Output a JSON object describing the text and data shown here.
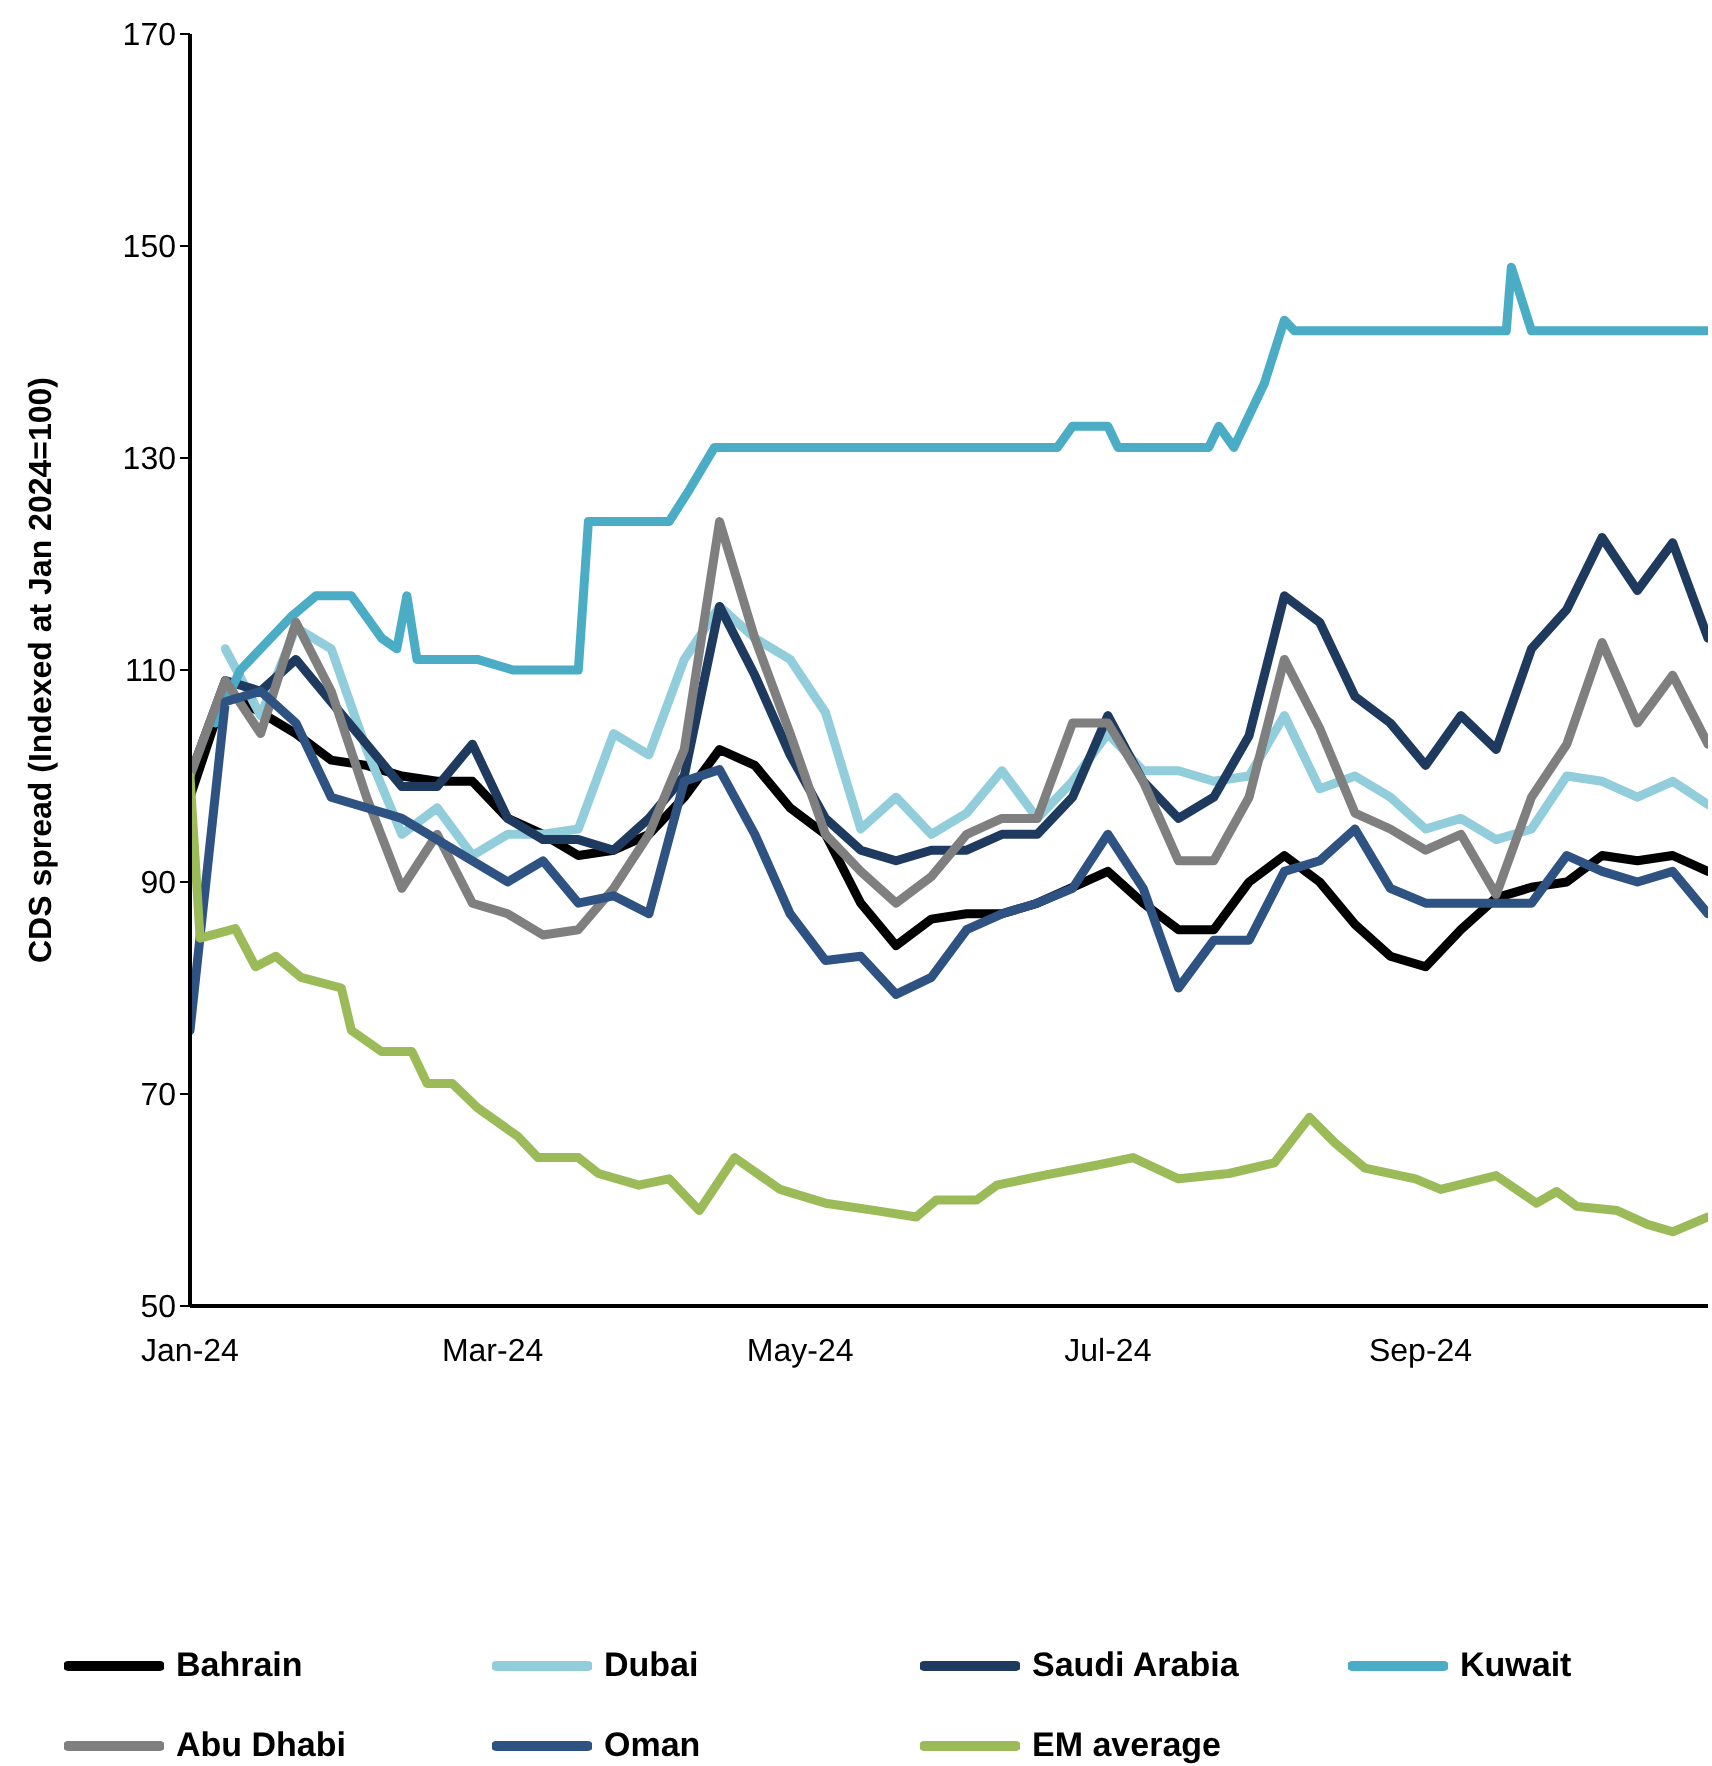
{
  "chart_data": {
    "type": "line",
    "ylabel": "CDS spread (Indexed at Jan 2024=100)",
    "x": [
      "2024-01-01",
      "2024-01-08",
      "2024-01-15",
      "2024-01-22",
      "2024-01-29",
      "2024-02-05",
      "2024-02-12",
      "2024-02-19",
      "2024-02-26",
      "2024-03-04",
      "2024-03-11",
      "2024-03-18",
      "2024-03-25",
      "2024-04-01",
      "2024-04-08",
      "2024-04-15",
      "2024-04-22",
      "2024-04-29",
      "2024-05-06",
      "2024-05-13",
      "2024-05-20",
      "2024-05-27",
      "2024-06-03",
      "2024-06-10",
      "2024-06-17",
      "2024-06-24",
      "2024-07-01",
      "2024-07-08",
      "2024-07-15",
      "2024-07-22",
      "2024-07-29",
      "2024-08-05",
      "2024-08-12",
      "2024-08-19",
      "2024-08-26",
      "2024-09-02",
      "2024-09-09",
      "2024-09-16",
      "2024-09-23",
      "2024-09-30",
      "2024-10-07",
      "2024-10-14",
      "2024-10-21",
      "2024-10-28"
    ],
    "series": [
      {
        "name": "Bahrain",
        "color": "#000000",
        "values": [
          98,
          108,
          106,
          104,
          101.5,
          101,
          100,
          99.5,
          99.5,
          96,
          94.5,
          92.5,
          93,
          94.5,
          98,
          102.5,
          101,
          97,
          94.5,
          88,
          84,
          86.5,
          87,
          87,
          88,
          89.5,
          91,
          88,
          85.5,
          85.5,
          90,
          92.5,
          90,
          86,
          83,
          82,
          85.5,
          88.5,
          89.5,
          90,
          92.5,
          92,
          92.5,
          91
        ]
      },
      {
        "name": "Dubai",
        "color": "#92cddc",
        "values": [
          null,
          112,
          105.7,
          114,
          112,
          102.5,
          94.5,
          97,
          92.5,
          94.5,
          94.5,
          95,
          104,
          102,
          111,
          116,
          113,
          111,
          106,
          95,
          98,
          94.5,
          96.5,
          100.5,
          96,
          99.5,
          104,
          100.5,
          100.5,
          99.5,
          100,
          105.7,
          98.8,
          100,
          98,
          95,
          96,
          94,
          95,
          100,
          99.5,
          98,
          99.5,
          97.3
        ]
      },
      {
        "name": "Saudi Arabia",
        "color": "#1f3a5f",
        "values": [
          100,
          109,
          108,
          111,
          107,
          103,
          99,
          99,
          103,
          96,
          94,
          94,
          93,
          96,
          100,
          116,
          109.5,
          102,
          96,
          93,
          92,
          93,
          93,
          94.5,
          94.5,
          98,
          105.7,
          99.5,
          96,
          98,
          103.8,
          117,
          114.5,
          107.5,
          105,
          101,
          105.7,
          102.5,
          112,
          115.7,
          122.5,
          117.5,
          122,
          113
        ]
      },
      {
        "name": "Kuwait",
        "color": "#4bacc6",
        "x": [
          "2024-01-06",
          "2024-01-11",
          "2024-01-21",
          "2024-01-26",
          "2024-02-02",
          "2024-02-08",
          "2024-02-11",
          "2024-02-13",
          "2024-02-15",
          "2024-02-27",
          "2024-03-05",
          "2024-03-18",
          "2024-03-20",
          "2024-04-05",
          "2024-04-09",
          "2024-04-14",
          "2024-06-21",
          "2024-06-24",
          "2024-07-01",
          "2024-07-03",
          "2024-07-21",
          "2024-07-23",
          "2024-07-26",
          "2024-08-01",
          "2024-08-05",
          "2024-08-07",
          "2024-09-18",
          "2024-09-19",
          "2024-09-23",
          "2024-10-28"
        ],
        "values": [
          105,
          110,
          115,
          117,
          117,
          113,
          112,
          117,
          111,
          111,
          110,
          110,
          124,
          124,
          127,
          131,
          131,
          133,
          133,
          131,
          131,
          133,
          131,
          137,
          143,
          142,
          142,
          148,
          142,
          142
        ]
      },
      {
        "name": "Abu Dhabi",
        "color": "#7f7f7f",
        "values": [
          100,
          109,
          104,
          114.5,
          108,
          98,
          89.4,
          94.5,
          88,
          87,
          85,
          85.5,
          89.4,
          94.5,
          102.5,
          124,
          113,
          104,
          94.5,
          91,
          88,
          90.5,
          94.5,
          96,
          96,
          105,
          105,
          99.5,
          92,
          92,
          98,
          111,
          104.5,
          96.5,
          95,
          93,
          94.5,
          88.8,
          98,
          103,
          112.6,
          105,
          109.5,
          103
        ]
      },
      {
        "name": "Oman",
        "color": "#2e5282",
        "values": [
          76,
          107,
          108,
          105,
          98,
          97,
          96,
          94,
          92,
          90,
          92,
          88,
          88.7,
          87,
          99.5,
          100.6,
          94.5,
          87,
          82.6,
          83,
          79.4,
          81,
          85.5,
          87,
          88,
          89.4,
          94.5,
          89.4,
          80,
          84.5,
          84.5,
          91,
          92,
          95,
          89.4,
          88,
          88,
          88,
          88,
          92.5,
          91,
          90,
          91,
          87
        ]
      },
      {
        "name": "EM average",
        "color": "#9bbb59",
        "x": [
          "2024-01-01",
          "2024-01-03",
          "2024-01-10",
          "2024-01-14",
          "2024-01-18",
          "2024-01-23",
          "2024-01-31",
          "2024-02-02",
          "2024-02-08",
          "2024-02-14",
          "2024-02-17",
          "2024-02-22",
          "2024-02-27",
          "2024-03-06",
          "2024-03-10",
          "2024-03-18",
          "2024-03-22",
          "2024-03-30",
          "2024-04-05",
          "2024-04-11",
          "2024-04-18",
          "2024-04-27",
          "2024-05-06",
          "2024-05-16",
          "2024-05-24",
          "2024-05-28",
          "2024-06-05",
          "2024-06-09",
          "2024-06-19",
          "2024-06-29",
          "2024-07-06",
          "2024-07-15",
          "2024-07-25",
          "2024-08-03",
          "2024-08-10",
          "2024-08-15",
          "2024-08-21",
          "2024-08-31",
          "2024-09-05",
          "2024-09-16",
          "2024-09-24",
          "2024-09-28",
          "2024-10-02",
          "2024-10-10",
          "2024-10-16",
          "2024-10-21",
          "2024-10-28"
        ],
        "values": [
          100,
          84.7,
          85.6,
          82,
          83,
          81,
          80,
          76,
          74,
          74,
          71,
          71,
          68.7,
          66,
          64,
          64,
          62.5,
          61.4,
          62,
          59,
          64,
          61,
          59.7,
          59,
          58.4,
          60,
          60,
          61.4,
          62.4,
          63.3,
          64,
          62,
          62.5,
          63.5,
          67.8,
          65.4,
          63,
          62,
          61,
          62.3,
          59.7,
          60.8,
          59.4,
          59,
          57.7,
          57,
          58.4
        ]
      }
    ],
    "xlim": [
      "2024-01-01",
      "2024-10-28"
    ],
    "xticks": [
      {
        "value": "2024-01-01",
        "label": "Jan-24"
      },
      {
        "value": "2024-03-01",
        "label": "Mar-24"
      },
      {
        "value": "2024-05-01",
        "label": "May-24"
      },
      {
        "value": "2024-07-01",
        "label": "Jul-24"
      },
      {
        "value": "2024-09-01",
        "label": "Sep-24"
      }
    ],
    "ylim": [
      50,
      170
    ],
    "yticks": [
      50,
      70,
      90,
      110,
      130,
      150,
      170
    ],
    "grid": false,
    "legend": "bottom",
    "marker": "none",
    "line_style": "solid"
  }
}
